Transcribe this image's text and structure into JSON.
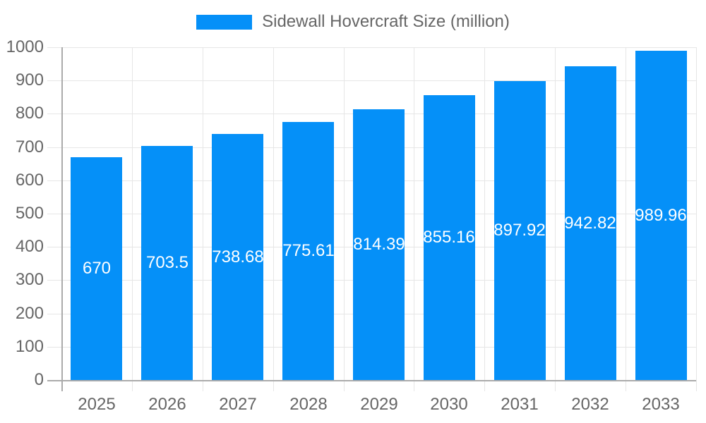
{
  "chart_data": {
    "type": "bar",
    "title": "",
    "legend": "Sidewall Hovercraft Size (million)",
    "legend_position": "top-center",
    "categories": [
      "2025",
      "2026",
      "2027",
      "2028",
      "2029",
      "2030",
      "2031",
      "2032",
      "2033"
    ],
    "values": [
      670,
      703.5,
      738.68,
      775.61,
      814.39,
      855.16,
      897.92,
      942.82,
      989.96
    ],
    "value_labels": [
      "670",
      "703.5",
      "738.68",
      "775.61",
      "814.39",
      "855.16",
      "897.92",
      "942.82",
      "989.96"
    ],
    "xlabel": "",
    "ylabel": "",
    "ylim": [
      0,
      1000
    ],
    "y_tick_step": 100,
    "y_tick_labels": [
      "0",
      "100",
      "200",
      "300",
      "400",
      "500",
      "600",
      "700",
      "800",
      "900",
      "1000"
    ],
    "grid": true
  },
  "colors": {
    "bar": "#0590f8",
    "grid": "#e6e6e6",
    "axis": "#ababab",
    "tick_text": "#666666",
    "legend_text": "#666666",
    "value_label": "#ffffff",
    "background": "#ffffff"
  }
}
